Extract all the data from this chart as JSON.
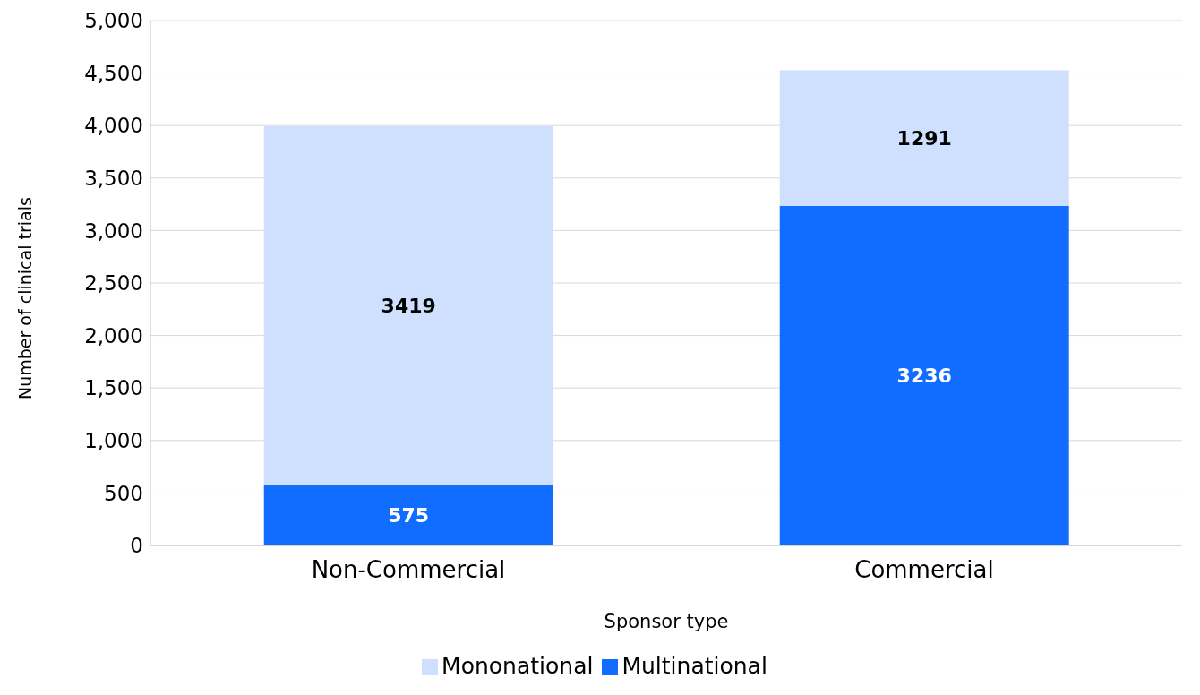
{
  "chart_data": {
    "type": "bar",
    "stacked": true,
    "xlabel": "Sponsor type",
    "ylabel": "Number of clinical trials",
    "categories": [
      "Non-Commercial",
      "Commercial"
    ],
    "series": [
      {
        "name": "Multinational",
        "color": "#116dff",
        "values": [
          575,
          3236
        ]
      },
      {
        "name": "Mononational",
        "color": "#cfe0ff",
        "values": [
          3419,
          1291
        ]
      }
    ],
    "ylim": [
      0,
      5000
    ],
    "yticks": [
      0,
      500,
      {
        "value": 1000,
        "label": "1,000"
      },
      {
        "value": 1500,
        "label": "1,500"
      },
      {
        "value": 2000,
        "label": "2,000"
      },
      {
        "value": 2500,
        "label": "2,500"
      },
      {
        "value": 3000,
        "label": "3,000"
      },
      {
        "value": 3500,
        "label": "3,500"
      },
      {
        "value": 4000,
        "label": "4,000"
      },
      {
        "value": 4500,
        "label": "4,500"
      },
      {
        "value": 5000,
        "label": "5,000"
      }
    ],
    "grid": "y",
    "legend": "bottom",
    "data_labels": true
  }
}
